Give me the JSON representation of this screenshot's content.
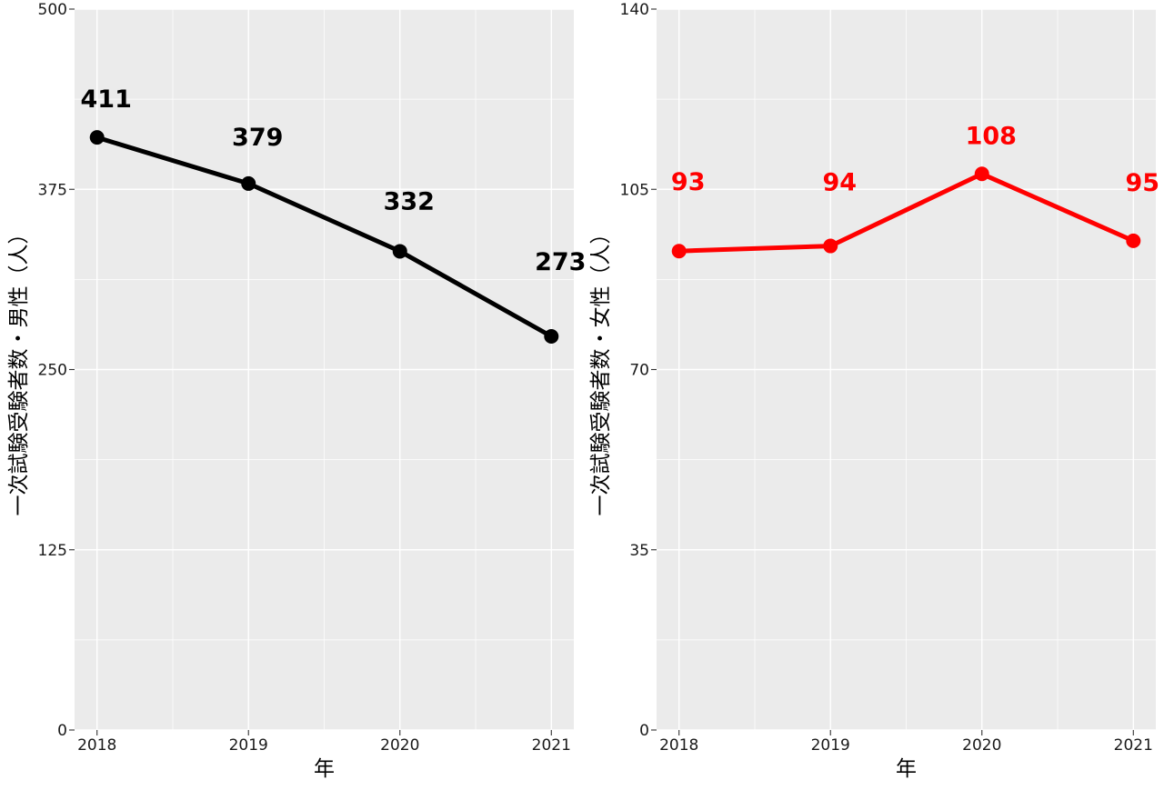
{
  "chart_data": [
    {
      "type": "line",
      "title": "",
      "xlabel": "年",
      "ylabel": "一次試験受験者数・男性（人）",
      "x": [
        "2018",
        "2019",
        "2020",
        "2021"
      ],
      "y_ticks": [
        0,
        125,
        250,
        375,
        500
      ],
      "ylim": [
        0,
        500
      ],
      "grid": true,
      "series": [
        {
          "values": [
            411,
            379,
            332,
            273
          ],
          "data_labels": [
            "411",
            "379",
            "332",
            "273"
          ],
          "color": "#000000"
        }
      ]
    },
    {
      "type": "line",
      "title": "",
      "xlabel": "年",
      "ylabel": "一次試験受験者数・女性（人）",
      "x": [
        "2018",
        "2019",
        "2020",
        "2021"
      ],
      "y_ticks": [
        0,
        35,
        70,
        105,
        140
      ],
      "ylim": [
        0,
        140
      ],
      "grid": true,
      "series": [
        {
          "values": [
            93,
            94,
            108,
            95
          ],
          "data_labels": [
            "93",
            "94",
            "108",
            "95"
          ],
          "color": "#ff0000"
        }
      ]
    }
  ]
}
